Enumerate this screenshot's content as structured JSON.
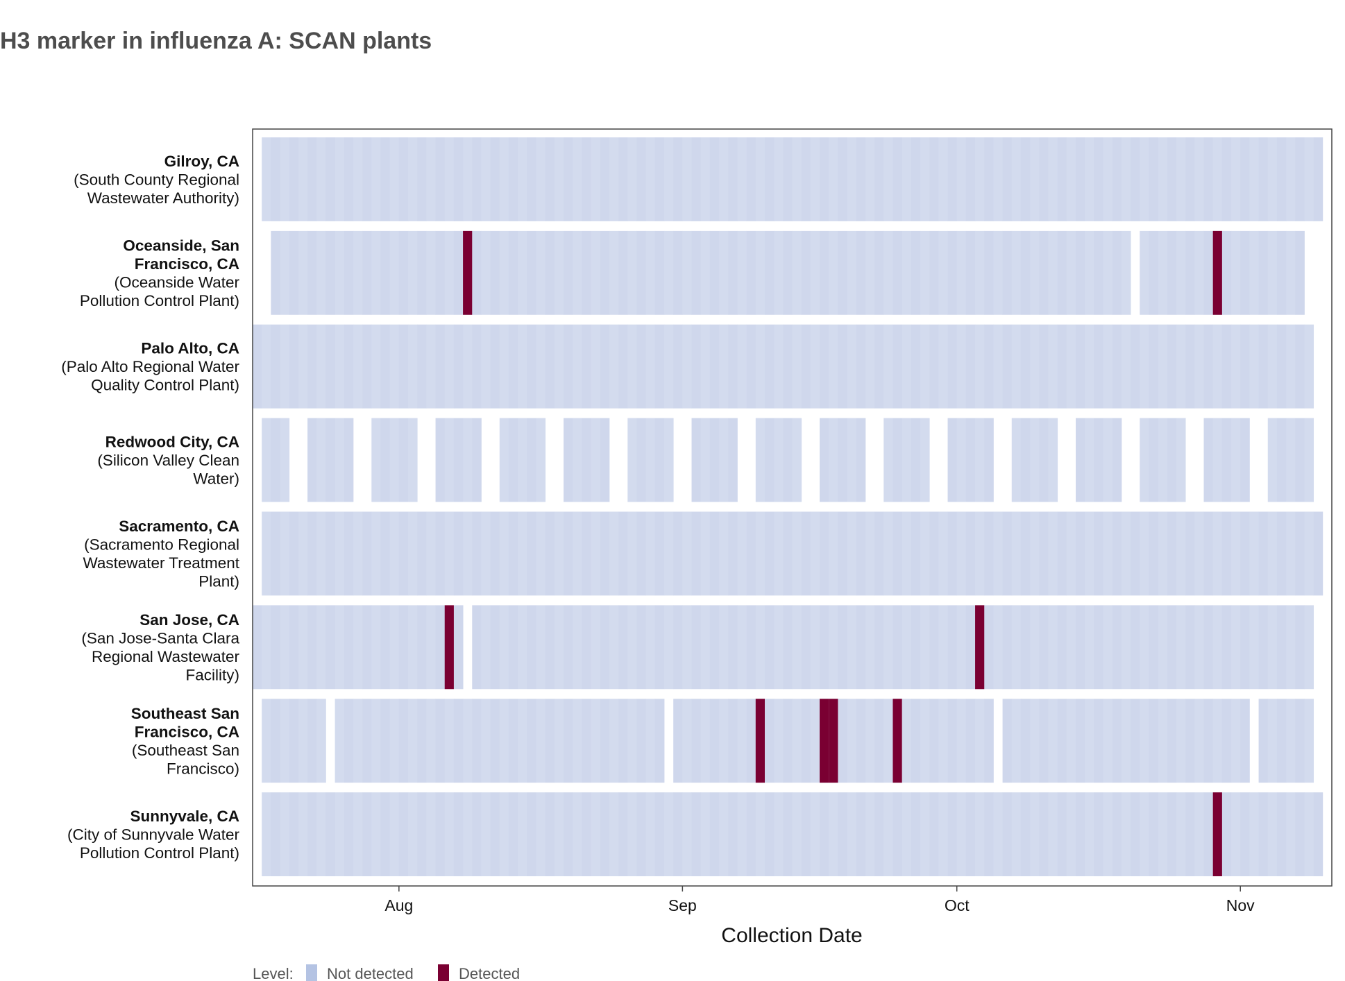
{
  "chart_data": {
    "type": "heatmap",
    "title": "H3 marker in influenza A: SCAN plants",
    "xlabel": "Collection Date",
    "ylabel": "",
    "x_range": [
      "2024-07-16",
      "2024-11-10"
    ],
    "x_ticks": [
      {
        "date": "2024-08-01",
        "label": "Aug"
      },
      {
        "date": "2024-09-01",
        "label": "Sep"
      },
      {
        "date": "2024-10-01",
        "label": "Oct"
      },
      {
        "date": "2024-11-01",
        "label": "Nov"
      }
    ],
    "levels": [
      "Not detected",
      "Detected"
    ],
    "colors": {
      "Not detected": "#cfd7ec",
      "Detected": "#7a0032"
    },
    "legend": {
      "title": "Level:",
      "position": "bottom-left",
      "items": [
        {
          "label": "Not detected",
          "color": "#b4c3e3"
        },
        {
          "label": "Detected",
          "color": "#7a0032"
        }
      ]
    },
    "sites": [
      {
        "name_lines": [
          "Gilroy, CA"
        ],
        "desc_lines": [
          "(South County Regional",
          "Wastewater Authority)"
        ],
        "not_detected": [
          [
            "2024-07-17",
            "2024-11-09"
          ]
        ],
        "detected": []
      },
      {
        "name_lines": [
          "Oceanside, San",
          "Francisco, CA"
        ],
        "desc_lines": [
          "(Oceanside Water",
          "Pollution Control Plant)"
        ],
        "not_detected": [
          [
            "2024-07-18",
            "2024-08-06"
          ],
          [
            "2024-08-07",
            "2024-10-18"
          ],
          [
            "2024-10-19",
            "2024-10-19"
          ],
          [
            "2024-10-21",
            "2024-11-07"
          ]
        ],
        "detected": [
          "2024-08-08",
          "2024-10-29"
        ]
      },
      {
        "name_lines": [
          "Palo Alto, CA"
        ],
        "desc_lines": [
          "(Palo Alto Regional Water",
          "Quality Control Plant)"
        ],
        "not_detected": [
          [
            "2024-07-16",
            "2024-11-08"
          ]
        ],
        "detected": []
      },
      {
        "name_lines": [
          "Redwood City, CA"
        ],
        "desc_lines": [
          "(Silicon Valley Clean",
          "Water)"
        ],
        "not_detected": [
          [
            "2024-07-17",
            "2024-07-19"
          ],
          [
            "2024-07-22",
            "2024-07-26"
          ],
          [
            "2024-07-29",
            "2024-08-02"
          ],
          [
            "2024-08-05",
            "2024-08-09"
          ],
          [
            "2024-08-12",
            "2024-08-16"
          ],
          [
            "2024-08-19",
            "2024-08-23"
          ],
          [
            "2024-08-26",
            "2024-08-30"
          ],
          [
            "2024-09-02",
            "2024-09-06"
          ],
          [
            "2024-09-09",
            "2024-09-13"
          ],
          [
            "2024-09-16",
            "2024-09-20"
          ],
          [
            "2024-09-23",
            "2024-09-27"
          ],
          [
            "2024-09-30",
            "2024-10-04"
          ],
          [
            "2024-10-07",
            "2024-10-11"
          ],
          [
            "2024-10-14",
            "2024-10-18"
          ],
          [
            "2024-10-21",
            "2024-10-25"
          ],
          [
            "2024-10-28",
            "2024-11-01"
          ],
          [
            "2024-11-04",
            "2024-11-08"
          ]
        ],
        "detected": []
      },
      {
        "name_lines": [
          "Sacramento, CA"
        ],
        "desc_lines": [
          "(Sacramento Regional",
          "Wastewater Treatment",
          "Plant)"
        ],
        "not_detected": [
          [
            "2024-07-17",
            "2024-11-09"
          ]
        ],
        "detected": []
      },
      {
        "name_lines": [
          "San Jose, CA"
        ],
        "desc_lines": [
          "(San Jose-Santa Clara",
          "Regional Wastewater",
          "Facility)"
        ],
        "not_detected": [
          [
            "2024-07-16",
            "2024-08-05"
          ],
          [
            "2024-08-07",
            "2024-08-07"
          ],
          [
            "2024-08-09",
            "2024-11-08"
          ]
        ],
        "detected": [
          "2024-08-06",
          "2024-10-03"
        ]
      },
      {
        "name_lines": [
          "Southeast San",
          "Francisco, CA"
        ],
        "desc_lines": [
          "(Southeast San",
          "Francisco)"
        ],
        "not_detected": [
          [
            "2024-07-17",
            "2024-07-23"
          ],
          [
            "2024-07-25",
            "2024-08-29"
          ],
          [
            "2024-08-31",
            "2024-10-04"
          ],
          [
            "2024-10-06",
            "2024-11-01"
          ],
          [
            "2024-11-03",
            "2024-11-08"
          ]
        ],
        "detected": [
          "2024-09-09",
          "2024-09-16",
          "2024-09-17",
          "2024-09-24"
        ]
      },
      {
        "name_lines": [
          "Sunnyvale, CA"
        ],
        "desc_lines": [
          "(City of Sunnyvale Water",
          "Pollution Control Plant)"
        ],
        "not_detected": [
          [
            "2024-07-17",
            "2024-11-09"
          ]
        ],
        "detected": [
          "2024-10-29"
        ]
      }
    ]
  }
}
